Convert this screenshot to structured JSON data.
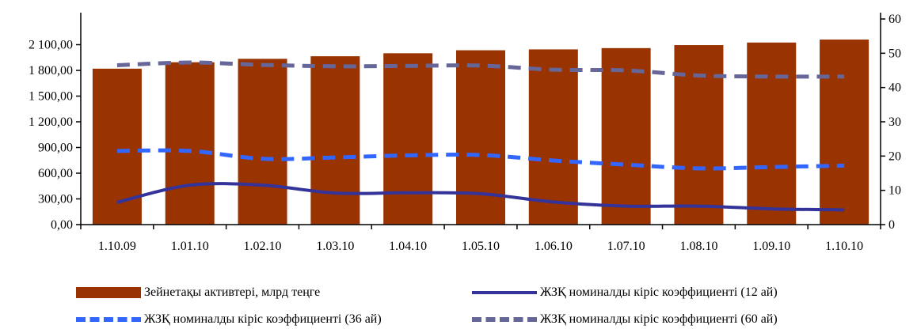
{
  "chart_data": {
    "type": "bar",
    "categories": [
      "1.10.09",
      "1.01.10",
      "1.02.10",
      "1.03.10",
      "1.04.10",
      "1.05.10",
      "1.06.10",
      "1.07.10",
      "1.08.10",
      "1.09.10",
      "1.10.10"
    ],
    "y_left": {
      "ylim": [
        0,
        2400
      ],
      "ticks": [
        0,
        300,
        600,
        900,
        1200,
        1500,
        1800,
        2100
      ],
      "tick_labels": [
        "0,00",
        "300,00",
        "600,00",
        "900,00",
        "1 200,00",
        "1 500,00",
        "1 800,00",
        "2 100,00"
      ]
    },
    "y_right": {
      "ylim": [
        0,
        60
      ],
      "ticks": [
        0,
        10,
        20,
        30,
        40,
        50,
        60
      ],
      "tick_labels": [
        "0",
        "10",
        "20",
        "30",
        "40",
        "50",
        "60"
      ]
    },
    "series": [
      {
        "name": "Зейнетақы активтері, млрд теңге",
        "type": "bar",
        "axis": "left",
        "color": "#993300",
        "values": [
          1820,
          1895,
          1935,
          1965,
          2000,
          2035,
          2045,
          2060,
          2095,
          2125,
          2160
        ]
      },
      {
        "name": "ЖЗҚ номиналды кіріс коэффициенті (12 ай)",
        "type": "line",
        "axis": "right",
        "color": "#333399",
        "values": [
          6.5,
          11.5,
          11.5,
          9.2,
          9.3,
          9.0,
          6.6,
          5.4,
          5.4,
          4.6,
          4.3
        ]
      },
      {
        "name": "ЖЗҚ номиналды кіріс коэффициенті (36 ай)",
        "type": "dashed-line",
        "axis": "right",
        "color": "#3366ff",
        "values": [
          21.5,
          21.5,
          19.2,
          19.6,
          20.2,
          20.3,
          18.7,
          17.5,
          16.4,
          16.8,
          17.2
        ]
      },
      {
        "name": "ЖЗҚ номиналды кіріс коэффициенті (60 ай)",
        "type": "dashed-line",
        "axis": "right",
        "color": "#666699",
        "values": [
          46.5,
          47.3,
          46.6,
          46.2,
          46.3,
          46.4,
          45.2,
          45.0,
          43.5,
          43.2,
          43.2
        ]
      }
    ],
    "legend_position": "bottom",
    "grid": false
  }
}
